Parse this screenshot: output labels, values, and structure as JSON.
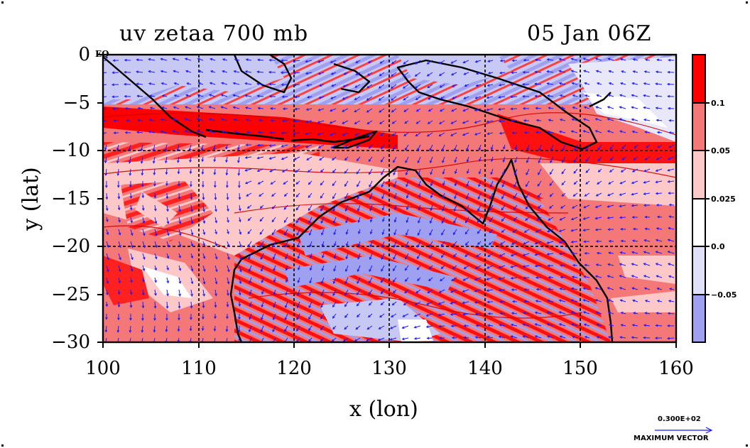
{
  "title": {
    "left": "uv zetaa 700 mb",
    "right": "05 Jan 06Z"
  },
  "axes": {
    "xlabel": "x (lon)",
    "ylabel": "y (lat)",
    "x_ticks": [
      "100",
      "110",
      "120",
      "130",
      "140",
      "150",
      "160"
    ],
    "y_ticks": [
      "0",
      "−5",
      "−10",
      "−15",
      "−20",
      "−25",
      "−30"
    ],
    "x_range": [
      100,
      160
    ],
    "y_range": [
      -30,
      0
    ],
    "grid_lines_x": [
      110,
      120,
      130,
      140,
      150
    ],
    "grid_lines_y": [
      -10,
      -20
    ],
    "eq_label": "EQ"
  },
  "colorbar": {
    "labels": [
      "0.1",
      "0.05",
      "0.025",
      "0.0",
      "−0.05"
    ],
    "colors": [
      "#ff0000",
      "#f47878",
      "#fcc8c8",
      "#ffffff",
      "#e0e0f8",
      "#a0a0f0"
    ]
  },
  "vector_key": {
    "value": "0.300E+02",
    "caption": "MAXIMUM VECTOR"
  },
  "colors": {
    "positive_strong": "#ff0000",
    "positive_mid": "#f47878",
    "positive_light": "#fcc8c8",
    "negative_light": "#e0e0f8",
    "negative_mid": "#a0a0f0",
    "vectors": "#1a1aff",
    "coast": "#000000"
  }
}
